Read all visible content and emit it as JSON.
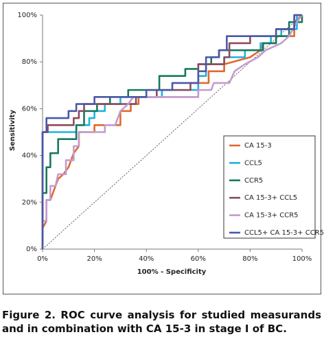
{
  "chart_data": {
    "type": "line",
    "ylabel": "Sensitivity",
    "xlabel": "100% - Specificity",
    "caption": "Figure 2. ROC curve analysis for studied measurands and in combination with CA 15-3 in stage I of BC.",
    "xlim": [
      0,
      100
    ],
    "ylim": [
      0,
      100
    ],
    "xticks": [
      {
        "value": 0,
        "label": "0%"
      },
      {
        "value": 20,
        "label": "20%"
      },
      {
        "value": 40,
        "label": "40%"
      },
      {
        "value": 60,
        "label": "60%"
      },
      {
        "value": 80,
        "label": "80%"
      },
      {
        "value": 100,
        "label": "100%"
      }
    ],
    "yticks": [
      {
        "value": 0,
        "label": "0%"
      },
      {
        "value": 20,
        "label": "20%"
      },
      {
        "value": 40,
        "label": "40%"
      },
      {
        "value": 60,
        "label": "60%"
      },
      {
        "value": 80,
        "label": "80%"
      },
      {
        "value": 100,
        "label": "100%"
      }
    ],
    "grid": false,
    "legend": "lower right",
    "series": [
      {
        "name": "CA 15-3",
        "color": "#e2682a",
        "x": [
          0,
          1.5,
          1.5,
          3,
          5,
          6,
          8,
          10,
          12,
          14,
          14,
          20,
          20,
          30,
          30,
          34,
          34,
          37,
          37,
          60,
          60,
          64,
          64,
          70,
          70,
          80,
          84,
          85,
          90,
          90,
          97,
          97,
          100
        ],
        "values": [
          9,
          12,
          21,
          21,
          27,
          30,
          32,
          35,
          41,
          44,
          50,
          50,
          53,
          53,
          59,
          59,
          62,
          62,
          65,
          65,
          71,
          71,
          76,
          76,
          79,
          82,
          85,
          88,
          88,
          91,
          91,
          97,
          100
        ]
      },
      {
        "name": "CCL5",
        "color": "#1fb2e3",
        "x": [
          0,
          0,
          13,
          13,
          18,
          18,
          20,
          20,
          24,
          24,
          30,
          30,
          46,
          46,
          60,
          60,
          63,
          63,
          70,
          70,
          78,
          78,
          84,
          84,
          88,
          88,
          92,
          92,
          98,
          98,
          100
        ],
        "values": [
          0,
          50,
          50,
          53,
          53,
          56,
          56,
          59,
          59,
          62,
          62,
          65,
          65,
          68,
          68,
          74,
          74,
          79,
          79,
          82,
          82,
          85,
          85,
          88,
          88,
          91,
          91,
          94,
          94,
          100,
          100
        ]
      },
      {
        "name": "CCR5",
        "color": "#17785e",
        "x": [
          0,
          0,
          1.5,
          1.5,
          3,
          3,
          6,
          6,
          13,
          13,
          16,
          16,
          21,
          21,
          26,
          26,
          33,
          33,
          45,
          45,
          55,
          55,
          60,
          60,
          65,
          65,
          68,
          68,
          85,
          85,
          90,
          90,
          95,
          95,
          100,
          100
        ],
        "values": [
          0,
          24,
          24,
          35,
          35,
          41,
          41,
          47,
          47,
          53,
          53,
          59,
          59,
          62,
          62,
          65,
          65,
          68,
          68,
          74,
          74,
          77,
          77,
          79,
          79,
          82,
          82,
          85,
          85,
          88,
          88,
          91,
          91,
          97,
          97,
          100
        ]
      },
      {
        "name": "CA 15-3+ CCL5",
        "color": "#8e4a5c",
        "x": [
          0,
          0,
          2,
          2,
          12,
          12,
          14,
          14,
          16,
          16,
          36,
          36,
          44,
          44,
          57,
          57,
          60,
          60,
          70,
          70,
          72,
          72,
          80,
          80,
          90,
          90,
          97,
          97,
          100
        ],
        "values": [
          0,
          50,
          50,
          53,
          53,
          56,
          56,
          59,
          59,
          62,
          62,
          65,
          65,
          68,
          68,
          71,
          71,
          79,
          79,
          82,
          82,
          88,
          88,
          91,
          91,
          94,
          94,
          100,
          100
        ]
      },
      {
        "name": "CA 15-3+ CCR5",
        "color": "#c29cd0",
        "x": [
          0,
          0,
          1.5,
          1.5,
          3,
          3,
          5,
          6,
          9,
          9,
          12,
          12,
          14,
          14,
          24,
          24,
          28,
          30,
          33,
          35,
          60,
          60,
          65,
          66,
          72,
          74,
          78,
          83,
          86,
          92,
          95,
          98,
          100
        ],
        "values": [
          0,
          12,
          12,
          21,
          21,
          27,
          27,
          32,
          32,
          38,
          38,
          44,
          44,
          50,
          50,
          53,
          53,
          59,
          62,
          65,
          65,
          68,
          68,
          71,
          71,
          76,
          79,
          82,
          85,
          88,
          91,
          97,
          100
        ]
      },
      {
        "name": "CCL5+ CA 15-3+ CCR5",
        "color": "#4a58a8",
        "x": [
          0,
          0,
          1.5,
          1.5,
          10,
          10,
          13,
          13,
          20,
          20,
          40,
          40,
          50,
          50,
          60,
          60,
          63,
          63,
          68,
          68,
          71,
          71,
          90,
          90,
          97,
          97,
          100
        ],
        "values": [
          0,
          50,
          50,
          56,
          56,
          59,
          59,
          62,
          62,
          65,
          65,
          68,
          68,
          71,
          71,
          76,
          76,
          82,
          82,
          85,
          85,
          91,
          91,
          94,
          94,
          100,
          100
        ]
      }
    ]
  }
}
